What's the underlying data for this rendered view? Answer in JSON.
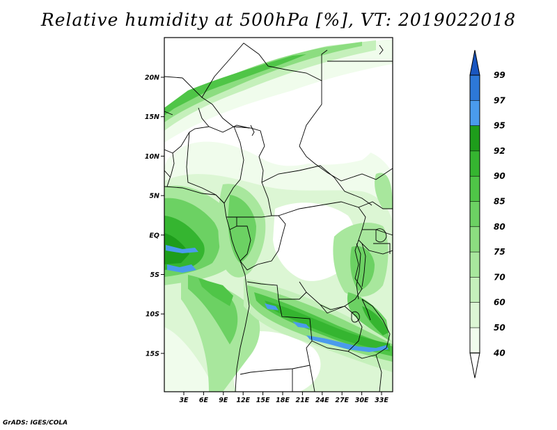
{
  "title": "Relative humidity at 500hPa [%], VT: 2019022018",
  "credit": "GrADS: IGES/COLA",
  "colors": {
    "c40": "#f0fcec",
    "c50": "#dcf6d4",
    "c60": "#c5f0bb",
    "c70": "#a8e79d",
    "c75": "#8cdd80",
    "c80": "#6cd163",
    "c85": "#4fc547",
    "c90": "#35b530",
    "c92": "#1e9d1b",
    "c95": "#4a9bec",
    "c97": "#2d78d8",
    "c99": "#1a56c0"
  },
  "lat_labels": [
    "20N",
    "15N",
    "10N",
    "5N",
    "EQ",
    "5S",
    "10S",
    "15S"
  ],
  "lon_labels": [
    "3E",
    "6E",
    "9E",
    "12E",
    "15E",
    "18E",
    "21E",
    "24E",
    "27E",
    "30E",
    "33E"
  ],
  "colorbar": {
    "labels": [
      "99",
      "97",
      "95",
      "92",
      "90",
      "85",
      "80",
      "75",
      "70",
      "60",
      "50",
      "40"
    ],
    "colors": [
      "#1a56c0",
      "#2d78d8",
      "#4a9bec",
      "#1e9d1b",
      "#35b530",
      "#4fc547",
      "#6cd163",
      "#8cdd80",
      "#a8e79d",
      "#c5f0bb",
      "#dcf6d4",
      "#f0fcec"
    ]
  }
}
